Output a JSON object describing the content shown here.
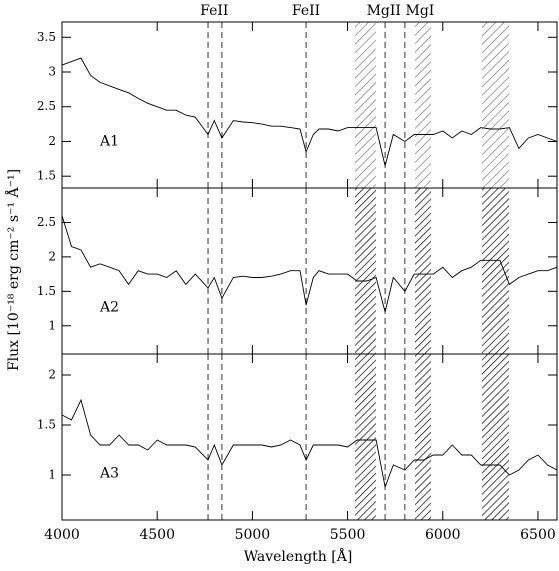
{
  "chart_data": [
    {
      "type": "line",
      "label": "A1",
      "color": "#000",
      "hatch_color": "#666",
      "x": [
        4000,
        4050,
        4100,
        4150,
        4200,
        4250,
        4300,
        4350,
        4400,
        4450,
        4500,
        4550,
        4600,
        4650,
        4700,
        4767,
        4800,
        4840,
        4900,
        4950,
        5000,
        5050,
        5100,
        5150,
        5200,
        5250,
        5282,
        5320,
        5350,
        5400,
        5450,
        5500,
        5550,
        5600,
        5650,
        5697,
        5740,
        5801,
        5850,
        5900,
        5950,
        6000,
        6050,
        6100,
        6150,
        6200,
        6250,
        6300,
        6350,
        6400,
        6450,
        6500,
        6550,
        6600
      ],
      "values": [
        3.1,
        3.15,
        3.2,
        2.95,
        2.85,
        2.8,
        2.75,
        2.7,
        2.62,
        2.55,
        2.5,
        2.45,
        2.45,
        2.38,
        2.35,
        2.1,
        2.3,
        2.05,
        2.3,
        2.28,
        2.27,
        2.25,
        2.22,
        2.22,
        2.2,
        2.18,
        1.85,
        2.1,
        2.18,
        2.18,
        2.15,
        2.2,
        2.2,
        2.2,
        2.2,
        1.65,
        2.1,
        2.0,
        2.1,
        2.1,
        2.1,
        2.15,
        2.05,
        2.15,
        2.1,
        2.2,
        2.18,
        2.18,
        2.2,
        1.9,
        2.05,
        2.1,
        2.05,
        2.0
      ],
      "ylim": [
        1.33,
        3.72
      ],
      "yticks": [
        1.5,
        2,
        2.5,
        3,
        3.5
      ]
    },
    {
      "type": "line",
      "label": "A2",
      "color": "#000",
      "hatch_color": "#000",
      "x": [
        4000,
        4050,
        4100,
        4150,
        4200,
        4250,
        4300,
        4350,
        4400,
        4450,
        4500,
        4550,
        4600,
        4650,
        4700,
        4767,
        4800,
        4840,
        4900,
        4950,
        5000,
        5050,
        5100,
        5150,
        5200,
        5250,
        5282,
        5320,
        5350,
        5400,
        5450,
        5500,
        5550,
        5600,
        5650,
        5697,
        5740,
        5801,
        5850,
        5900,
        5950,
        6000,
        6050,
        6100,
        6150,
        6200,
        6250,
        6300,
        6350,
        6400,
        6450,
        6500,
        6550,
        6600
      ],
      "values": [
        2.6,
        2.15,
        2.1,
        1.85,
        1.9,
        1.85,
        1.8,
        1.6,
        1.8,
        1.75,
        1.75,
        1.7,
        1.8,
        1.6,
        1.75,
        1.55,
        1.7,
        1.4,
        1.7,
        1.72,
        1.7,
        1.7,
        1.72,
        1.75,
        1.8,
        1.8,
        1.3,
        1.7,
        1.8,
        1.75,
        1.75,
        1.75,
        1.65,
        1.65,
        1.7,
        1.2,
        1.7,
        1.5,
        1.75,
        1.75,
        1.75,
        1.85,
        1.7,
        1.8,
        1.85,
        1.95,
        1.95,
        1.95,
        1.6,
        1.7,
        1.75,
        1.8,
        1.8,
        1.85
      ],
      "ylim": [
        0.59,
        3.0
      ],
      "yticks": [
        1,
        1.5,
        2,
        2.5
      ]
    },
    {
      "type": "line",
      "label": "A3",
      "color": "#000",
      "hatch_color": "#000",
      "x": [
        4000,
        4050,
        4100,
        4150,
        4200,
        4250,
        4300,
        4350,
        4400,
        4450,
        4500,
        4550,
        4600,
        4650,
        4700,
        4767,
        4800,
        4840,
        4900,
        4950,
        5000,
        5050,
        5100,
        5150,
        5200,
        5250,
        5282,
        5320,
        5350,
        5400,
        5450,
        5500,
        5550,
        5600,
        5650,
        5697,
        5740,
        5801,
        5850,
        5900,
        5950,
        6000,
        6050,
        6100,
        6150,
        6200,
        6250,
        6300,
        6350,
        6400,
        6450,
        6500,
        6550,
        6600
      ],
      "values": [
        1.6,
        1.55,
        1.75,
        1.4,
        1.3,
        1.3,
        1.4,
        1.3,
        1.3,
        1.25,
        1.35,
        1.3,
        1.3,
        1.3,
        1.28,
        1.15,
        1.3,
        1.1,
        1.3,
        1.3,
        1.3,
        1.3,
        1.28,
        1.3,
        1.35,
        1.3,
        1.15,
        1.3,
        1.3,
        1.3,
        1.3,
        1.28,
        1.35,
        1.35,
        1.35,
        0.88,
        1.1,
        1.05,
        1.15,
        1.15,
        1.2,
        1.2,
        1.3,
        1.2,
        1.2,
        1.1,
        1.1,
        1.1,
        1.0,
        1.05,
        1.15,
        1.2,
        1.1,
        1.05
      ],
      "ylim": [
        0.55,
        2.21
      ],
      "yticks": [
        1,
        1.5,
        2
      ],
      "xlim": [
        4000,
        6600
      ],
      "xticks": [
        4000,
        4500,
        5000,
        5500,
        6000,
        6500
      ]
    }
  ],
  "xlabel": "Wavelength [Å]",
  "ylabel": "Flux [10⁻¹⁸ erg cm⁻² s⁻¹ Å⁻¹]",
  "annotations": [
    {
      "text": "FeII",
      "x": 4800
    },
    {
      "text": "FeII",
      "x": 5282
    },
    {
      "text": "MgII",
      "x": 5690
    },
    {
      "text": "MgI",
      "x": 5880
    }
  ],
  "dashed_lines": [
    4767,
    4840,
    5282,
    5697,
    5801
  ],
  "masked_regions": [
    [
      5539,
      5649
    ],
    [
      5854,
      5938
    ],
    [
      6206,
      6348
    ]
  ]
}
